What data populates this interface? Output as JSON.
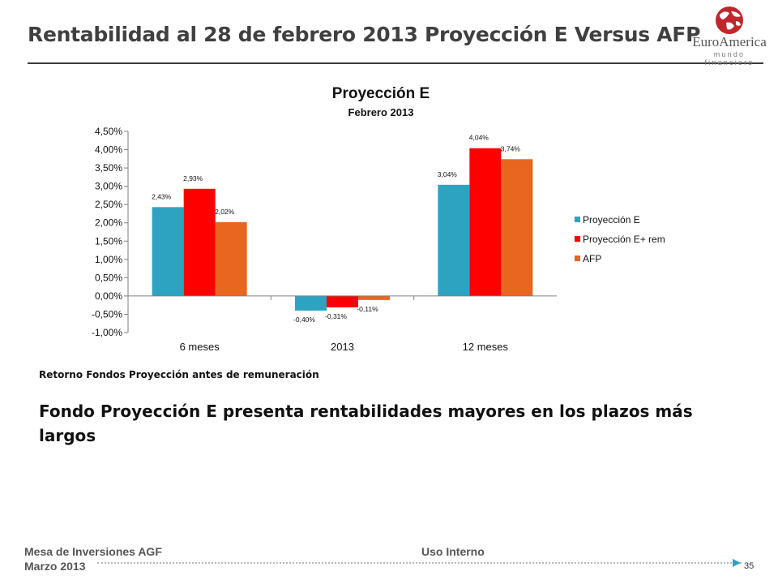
{
  "slide": {
    "title": "Rentabilidad al 28 de febrero 2013 Proyección E Versus AFP",
    "logo_name": "EuroAmerica",
    "logo_sub": "mundo financiero",
    "caption": "Retorno Fondos Proyección antes de remuneración",
    "statement": "Fondo Proyección E presenta rentabilidades mayores en los plazos más largos",
    "footer_org": "Mesa de Inversiones AGF",
    "footer_date": "Marzo 2013",
    "footer_class": "Uso Interno",
    "page_number": "35"
  },
  "colors": {
    "proyeccion_e": "#2ea3c1",
    "proyeccion_e_rem": "#ff0000",
    "afp": "#e8661f",
    "logo_red": "#c0272d"
  },
  "chart_data": {
    "type": "bar",
    "title": "Proyección E",
    "subtitle": "Febrero 2013",
    "categories": [
      "6 meses",
      "2013",
      "12 meses"
    ],
    "series": [
      {
        "name": "Proyección E",
        "values": [
          2.43,
          -0.4,
          3.04
        ],
        "labels": [
          "2,43%",
          "-0,40%",
          "3,04%"
        ]
      },
      {
        "name": "Proyección E+ rem",
        "values": [
          2.93,
          -0.31,
          4.04
        ],
        "labels": [
          "2,93%",
          "-0,31%",
          "4,04%"
        ]
      },
      {
        "name": "AFP",
        "values": [
          2.02,
          -0.11,
          3.74
        ],
        "labels": [
          "2,02%",
          "-0,11%",
          "3,74%"
        ]
      }
    ],
    "ylim": [
      -1.0,
      4.5
    ],
    "y_ticks": [
      4.5,
      4.0,
      3.5,
      3.0,
      2.5,
      2.0,
      1.5,
      1.0,
      0.5,
      0.0,
      -0.5,
      -1.0
    ],
    "y_tick_labels": [
      "4,50%",
      "4,00%",
      "3,50%",
      "3,00%",
      "2,50%",
      "2,00%",
      "1,50%",
      "1,00%",
      "0,50%",
      "0,00%",
      "-0,50%",
      "-1,00%"
    ],
    "grid": false,
    "legend_position": "right"
  }
}
